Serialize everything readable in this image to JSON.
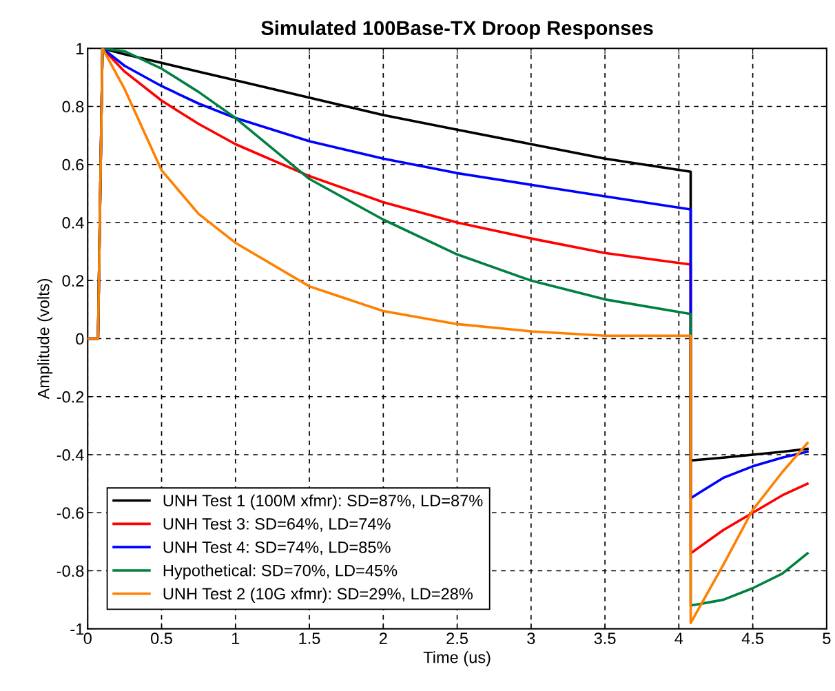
{
  "chart_data": {
    "type": "line",
    "title": "Simulated 100Base-TX Droop Responses",
    "xlabel": "Time (us)",
    "ylabel": "Amplitude (volts)",
    "xlim": [
      0,
      5
    ],
    "xticks": [
      0,
      0.5,
      1,
      1.5,
      2,
      2.5,
      3,
      3.5,
      4,
      4.5,
      5
    ],
    "ylim": [
      -1,
      1
    ],
    "yticks": [
      -1,
      -0.8,
      -0.6,
      -0.4,
      -0.2,
      0,
      0.2,
      0.4,
      0.6,
      0.8,
      1
    ],
    "grid": true,
    "legend": "bottom left",
    "line_style": "solid",
    "marker": "none",
    "x": [
      0,
      0.07,
      0.1,
      0.25,
      0.5,
      0.75,
      1,
      1.5,
      2,
      2.5,
      3,
      3.5,
      4.08,
      4.08,
      4.3,
      4.5,
      4.7,
      4.87
    ],
    "series": [
      {
        "name": "UNH Test 1 (100M xfmr): SD=87%, LD=87%",
        "color": "#000000",
        "values": [
          0,
          0,
          1,
          0.98,
          0.95,
          0.92,
          0.89,
          0.83,
          0.77,
          0.72,
          0.67,
          0.62,
          0.575,
          -0.42,
          -0.41,
          -0.4,
          -0.39,
          -0.38
        ]
      },
      {
        "name": "UNH Test 3: SD=64%, LD=74%",
        "color": "#ff0000",
        "values": [
          0,
          0,
          1,
          0.92,
          0.82,
          0.74,
          0.67,
          0.56,
          0.47,
          0.4,
          0.345,
          0.295,
          0.255,
          -0.74,
          -0.66,
          -0.6,
          -0.54,
          -0.5
        ]
      },
      {
        "name": "UNH Test 4: SD=74%, LD=85%",
        "color": "#0000ff",
        "values": [
          0,
          0,
          1,
          0.94,
          0.87,
          0.81,
          0.76,
          0.68,
          0.62,
          0.57,
          0.53,
          0.49,
          0.445,
          -0.55,
          -0.48,
          -0.44,
          -0.41,
          -0.39
        ]
      },
      {
        "name": "Hypothetical: SD=70%, LD=45%",
        "color": "#008040",
        "values": [
          0,
          0,
          1,
          0.99,
          0.93,
          0.85,
          0.76,
          0.55,
          0.41,
          0.29,
          0.2,
          0.135,
          0.085,
          -0.92,
          -0.9,
          -0.86,
          -0.81,
          -0.74
        ]
      },
      {
        "name": "UNH Test 2 (10G xfmr): SD=29%, LD=28%",
        "color": "#ff8000",
        "values": [
          0,
          0,
          1,
          0.86,
          0.58,
          0.43,
          0.33,
          0.18,
          0.095,
          0.05,
          0.025,
          0.01,
          0.01,
          -0.98,
          -0.78,
          -0.59,
          -0.46,
          -0.36
        ]
      }
    ]
  }
}
